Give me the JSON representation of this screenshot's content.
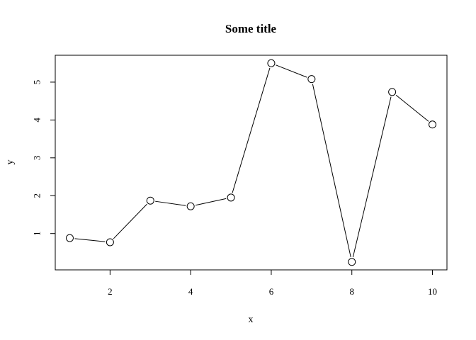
{
  "chart_data": {
    "type": "line",
    "title": "Some title",
    "xlabel": "x",
    "ylabel": "y",
    "x": [
      1,
      2,
      3,
      4,
      5,
      6,
      7,
      8,
      9,
      10
    ],
    "y": [
      0.88,
      0.77,
      1.87,
      1.72,
      1.95,
      5.5,
      5.08,
      0.25,
      4.74,
      3.88
    ],
    "xlim": [
      0.64,
      10.36
    ],
    "ylim": [
      0.04,
      5.71
    ],
    "x_ticks": [
      "2",
      "4",
      "6",
      "8",
      "10"
    ],
    "y_ticks": [
      "1",
      "2",
      "3",
      "4",
      "5"
    ],
    "grid": false,
    "marker": "open-circle",
    "colors": {
      "line": "#000000",
      "marker_fill": "#ffffff",
      "frame": "#000000"
    }
  }
}
